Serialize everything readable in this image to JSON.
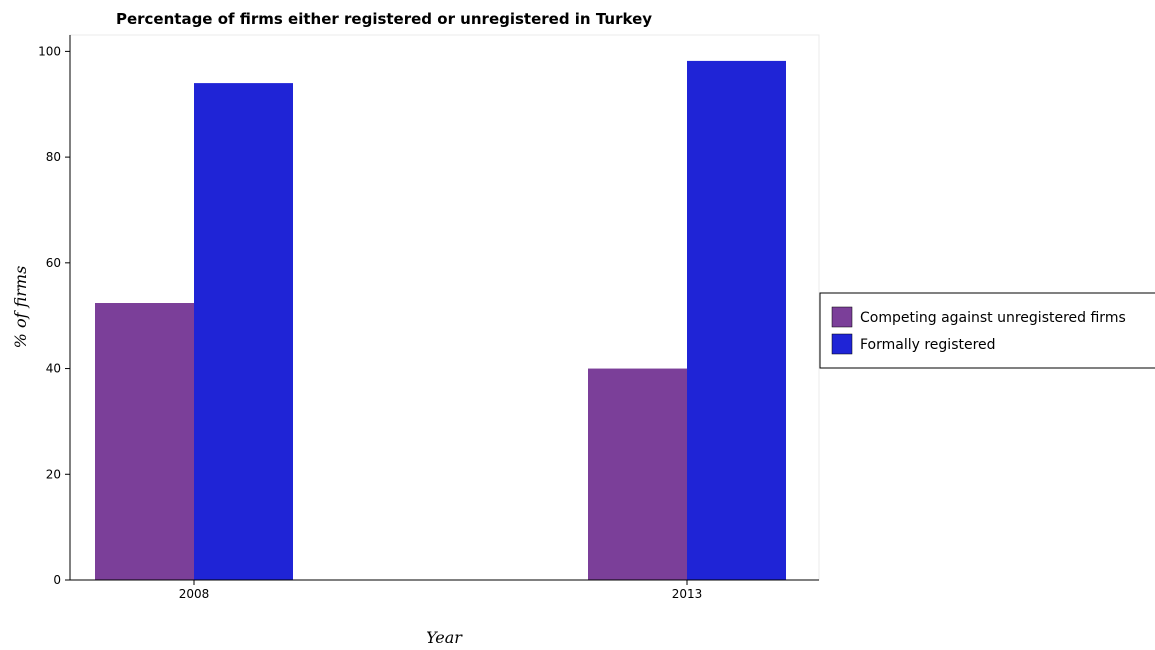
{
  "chart_data": {
    "type": "bar",
    "title": "Percentage of firms either registered or unregistered in Turkey",
    "xlabel": "Year",
    "ylabel": "% of firms",
    "categories": [
      "2008",
      "2013"
    ],
    "series": [
      {
        "name": "Competing against unregistered firms",
        "values": [
          52.4,
          40.0
        ],
        "color": "#7b3f99"
      },
      {
        "name": "Formally registered",
        "values": [
          94.0,
          98.2
        ],
        "color": "#1f24d6"
      }
    ],
    "ylim": [
      0,
      103.1
    ],
    "yticks": [
      "0",
      "20",
      "40",
      "60",
      "80",
      "100"
    ],
    "grid": false,
    "legend": "right"
  }
}
